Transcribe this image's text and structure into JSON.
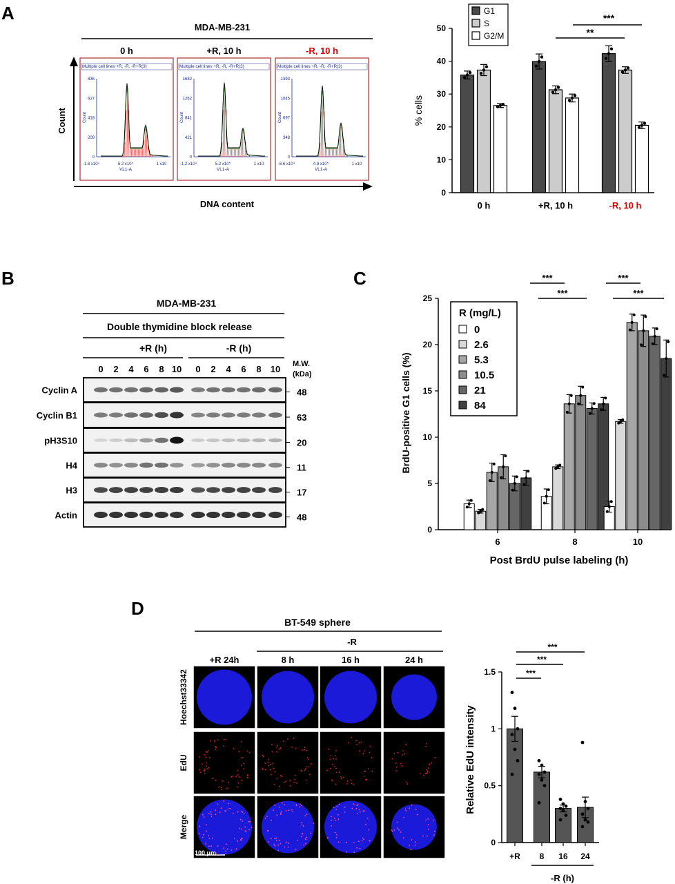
{
  "panel_labels": {
    "a": "A",
    "b": "B",
    "c": "C",
    "d": "D"
  },
  "panelA": {
    "cell_line": "MDA-MB-231",
    "y_axis_label": "Count",
    "x_axis_label": "DNA content",
    "histograms": [
      {
        "title": "0 h",
        "title_color": "#000000",
        "header": "Multiple cell lines +R, -R, -R+R(3)",
        "yticks": [
          "836",
          "627",
          "418",
          "209",
          "0"
        ],
        "xticks": [
          "-1.8 x10⁴",
          "5.2 x10⁵",
          "1 x10"
        ],
        "xlabel": "VL1-A",
        "ylabel": "Count"
      },
      {
        "title": "+R, 10 h",
        "title_color": "#000000",
        "header": "Multiple cell lines +R, -R, -R+R(3)",
        "yticks": [
          "1682",
          "1262",
          "841",
          "421",
          "0"
        ],
        "xticks": [
          "-1.2 x10⁴",
          "5.2 x10⁵",
          "1 x10"
        ],
        "xlabel": "VL1-A",
        "ylabel": "Count"
      },
      {
        "title": "-R, 10 h",
        "title_color": "#e00000",
        "header": "Multiple cell lines +R, -R, -R+R(3)",
        "yticks": [
          "1393",
          "1045",
          "697",
          "348",
          "0"
        ],
        "xticks": [
          "-6.6 x10⁴",
          "4.9 x10⁵",
          "1 x10"
        ],
        "xlabel": "VL1-A",
        "ylabel": "Count"
      }
    ],
    "colors": {
      "box_border": "#b03030",
      "fit_red": "#e02020",
      "green": "#20b020",
      "black": "#000000",
      "blue_axis": "#1c2c8c"
    }
  },
  "chart_data": [
    {
      "id": "A-bar",
      "type": "bar",
      "categories": [
        "0 h",
        "+R, 10 h",
        "-R, 10 h"
      ],
      "category_colors": [
        "#000000",
        "#000000",
        "#e00000"
      ],
      "series": [
        {
          "name": "G1",
          "values": [
            35.8,
            39.9,
            42.3
          ],
          "errors": [
            1.2,
            2.3,
            2.4
          ],
          "color": "#4a4a4a"
        },
        {
          "name": "S",
          "values": [
            37.3,
            31.3,
            37.3
          ],
          "errors": [
            1.7,
            1.2,
            1.0
          ],
          "color": "#cccccc"
        },
        {
          "name": "G2/M",
          "values": [
            26.5,
            28.8,
            20.5
          ],
          "errors": [
            0.6,
            1.2,
            1.0
          ],
          "color": "#ffffff"
        }
      ],
      "ylabel": "% cells",
      "ylim": [
        0,
        50
      ],
      "yticks": [
        0,
        10,
        20,
        30,
        40,
        50
      ],
      "legend": "top-left",
      "significance": [
        {
          "label": "***"
        },
        {
          "label": "**"
        }
      ]
    },
    {
      "id": "C-bar",
      "type": "bar",
      "categories": [
        "6",
        "8",
        "10"
      ],
      "xlabel": "Post BrdU pulse labeling (h)",
      "ylabel": "BrdU-positive G1 cells (%)",
      "ylim": [
        0,
        25
      ],
      "yticks": [
        0,
        5,
        10,
        15,
        20,
        25
      ],
      "legend_title": "R (mg/L)",
      "legend": "top-left",
      "series": [
        {
          "name": "0",
          "values": [
            2.8,
            3.6,
            2.5
          ],
          "errors": [
            0.4,
            0.8,
            0.6
          ],
          "color": "#ffffff"
        },
        {
          "name": "2.6",
          "values": [
            2.0,
            6.8,
            11.7
          ],
          "errors": [
            0.2,
            0.2,
            0.2
          ],
          "color": "#d9d9d9"
        },
        {
          "name": "5.3",
          "values": [
            6.2,
            13.6,
            22.4
          ],
          "errors": [
            1.0,
            1.0,
            0.9
          ],
          "color": "#a6a6a6"
        },
        {
          "name": "10.5",
          "values": [
            6.8,
            14.5,
            21.5
          ],
          "errors": [
            1.3,
            1.0,
            1.7
          ],
          "color": "#8c8c8c"
        },
        {
          "name": "21",
          "values": [
            5.0,
            13.1,
            20.9
          ],
          "errors": [
            0.8,
            0.6,
            0.9
          ],
          "color": "#666666"
        },
        {
          "name": "84",
          "values": [
            5.6,
            13.6,
            18.5
          ],
          "errors": [
            0.8,
            0.7,
            2.0
          ],
          "color": "#404040"
        }
      ],
      "significance": [
        {
          "label": "***"
        },
        {
          "label": "***"
        },
        {
          "label": "***"
        },
        {
          "label": "***"
        }
      ]
    },
    {
      "id": "D-bar",
      "type": "bar",
      "categories": [
        "+R",
        "8",
        "16",
        "24"
      ],
      "values": [
        1.0,
        0.62,
        0.3,
        0.31
      ],
      "errors": [
        0.11,
        0.05,
        0.03,
        0.09
      ],
      "points": [
        [
          1.32,
          1.18,
          1.0,
          0.95,
          0.82,
          0.72,
          0.6
        ],
        [
          0.72,
          0.68,
          0.62,
          0.6,
          0.55,
          0.5,
          0.35
        ],
        [
          0.38,
          0.34,
          0.32,
          0.3,
          0.28,
          0.24,
          0.2
        ],
        [
          0.88,
          0.36,
          0.3,
          0.25,
          0.2,
          0.18,
          0.14
        ]
      ],
      "ylabel": "Relative EdU intensity",
      "xlabel": "-R (h)",
      "ylim": [
        0,
        1.5
      ],
      "yticks": [
        "0",
        "0.5",
        "1",
        "1.5"
      ],
      "color": "#555555",
      "significance": [
        {
          "label": "***"
        },
        {
          "label": "***"
        },
        {
          "label": "***"
        }
      ]
    }
  ],
  "panelB": {
    "cell_line": "MDA-MB-231",
    "treatment": "Double thymidine block release",
    "group_plus": "+R  (h)",
    "group_minus": "-R  (h)",
    "timepoints": [
      "0",
      "2",
      "4",
      "6",
      "8",
      "10",
      "0",
      "2",
      "4",
      "6",
      "8",
      "10"
    ],
    "mw_header": "M.W.",
    "mw_unit": "(kDa)",
    "blots": [
      {
        "name": "Cyclin A",
        "mw": "48",
        "intensity": [
          0.55,
          0.55,
          0.55,
          0.6,
          0.62,
          0.68,
          0.5,
          0.55,
          0.55,
          0.55,
          0.58,
          0.6
        ]
      },
      {
        "name": "Cyclin B1",
        "mw": "63",
        "intensity": [
          0.5,
          0.5,
          0.55,
          0.6,
          0.72,
          0.85,
          0.45,
          0.5,
          0.5,
          0.5,
          0.5,
          0.55
        ]
      },
      {
        "name": "pH3S10",
        "mw": "20",
        "intensity": [
          0.08,
          0.12,
          0.2,
          0.35,
          0.55,
          1.0,
          0.12,
          0.15,
          0.18,
          0.2,
          0.22,
          0.25
        ]
      },
      {
        "name": "H4",
        "mw": "11",
        "intensity": [
          0.45,
          0.4,
          0.45,
          0.55,
          0.55,
          0.4,
          0.35,
          0.4,
          0.45,
          0.45,
          0.45,
          0.45
        ]
      },
      {
        "name": "H3",
        "mw": "17",
        "intensity": [
          0.75,
          0.78,
          0.78,
          0.78,
          0.8,
          0.82,
          0.7,
          0.75,
          0.78,
          0.78,
          0.78,
          0.78
        ]
      },
      {
        "name": "Actin",
        "mw": "48",
        "intensity": [
          0.85,
          0.85,
          0.85,
          0.85,
          0.85,
          0.85,
          0.85,
          0.85,
          0.85,
          0.85,
          0.85,
          0.85
        ]
      }
    ]
  },
  "panelD": {
    "title": "BT-549 sphere",
    "minus_label": "-R",
    "columns": [
      "+R 24h",
      "8 h",
      "16 h",
      "24 h"
    ],
    "rows": [
      "Hoechst33342",
      "EdU",
      "Merge"
    ],
    "scale_bar": "100 μm",
    "colors": {
      "hoechst": "#1a1ad8",
      "edu": "#e02020",
      "background": "#000000"
    }
  }
}
